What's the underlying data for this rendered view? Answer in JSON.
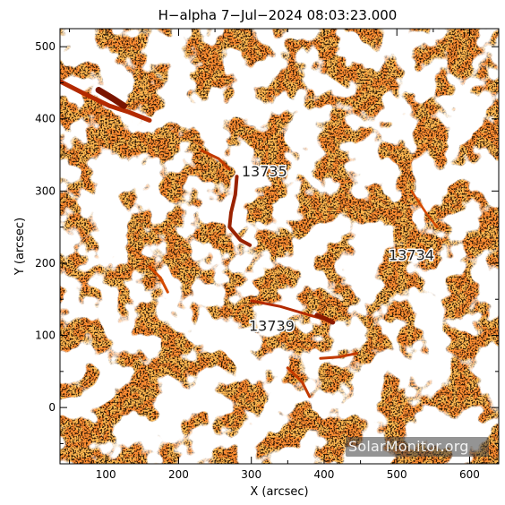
{
  "chart_data": {
    "type": "heatmap",
    "title": "H−alpha   7−Jul−2024 08:03:23.000",
    "xlabel": "X (arcsec)",
    "ylabel": "Y (arcsec)",
    "xlim": [
      37,
      640
    ],
    "ylim": [
      -78,
      525
    ],
    "x_ticks": [
      100,
      200,
      300,
      400,
      500,
      600
    ],
    "y_ticks": [
      0,
      100,
      200,
      300,
      400,
      500
    ],
    "x_tick_labels": [
      "100",
      "200",
      "300",
      "400",
      "500",
      "600"
    ],
    "y_tick_labels": [
      "0",
      "100",
      "200",
      "300",
      "400",
      "500"
    ],
    "colormap": [
      "#ffffff",
      "#ff9a3c",
      "#ff7a1a",
      "#d44a00",
      "#8b1a00",
      "#000000"
    ],
    "regions": [
      {
        "label": "13735",
        "x": 318,
        "y": 320
      },
      {
        "label": "13734",
        "x": 520,
        "y": 204
      },
      {
        "label": "13739",
        "x": 328,
        "y": 106
      }
    ],
    "watermark": "SolarMonitor.org"
  }
}
